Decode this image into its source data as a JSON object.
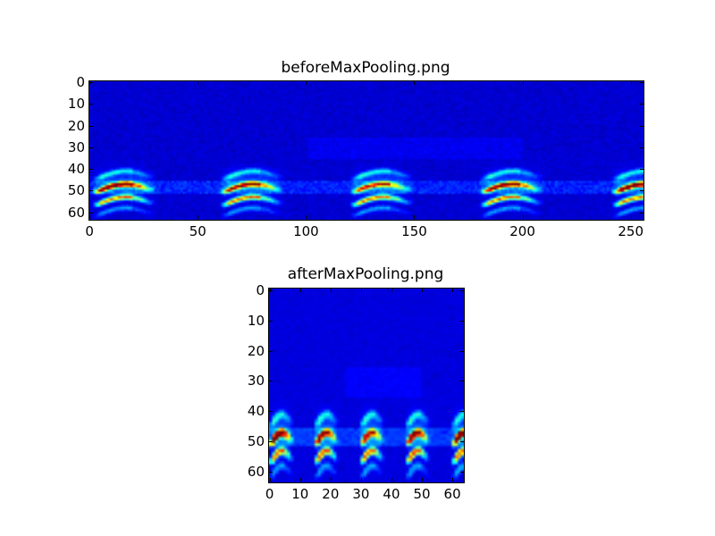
{
  "chart_data": [
    {
      "type": "heatmap",
      "title": "beforeMaxPooling.png",
      "colormap": "jet",
      "shape": [
        64,
        256
      ],
      "xlim": [
        0,
        256
      ],
      "ylim": [
        64,
        0
      ],
      "xticks": [
        0,
        50,
        100,
        150,
        200,
        250
      ],
      "yticks": [
        0,
        10,
        20,
        30,
        40,
        50,
        60
      ],
      "call_onsets_x": [
        3,
        62,
        122,
        182,
        243
      ],
      "bands": [
        {
          "row": 49,
          "intensity": 1.0
        },
        {
          "row": 55,
          "intensity": 0.72
        },
        {
          "row": 43,
          "intensity": 0.3
        },
        {
          "row": 60,
          "intensity": 0.22
        }
      ],
      "background_intensity": 0.06
    },
    {
      "type": "heatmap",
      "title": "afterMaxPooling.png",
      "colormap": "jet",
      "shape": [
        64,
        64
      ],
      "pooling": "max 4 columns",
      "xlim": [
        0,
        64
      ],
      "ylim": [
        64,
        0
      ],
      "xticks": [
        0,
        10,
        20,
        30,
        40,
        50,
        60
      ],
      "yticks": [
        0,
        10,
        20,
        30,
        40,
        50,
        60
      ]
    }
  ]
}
